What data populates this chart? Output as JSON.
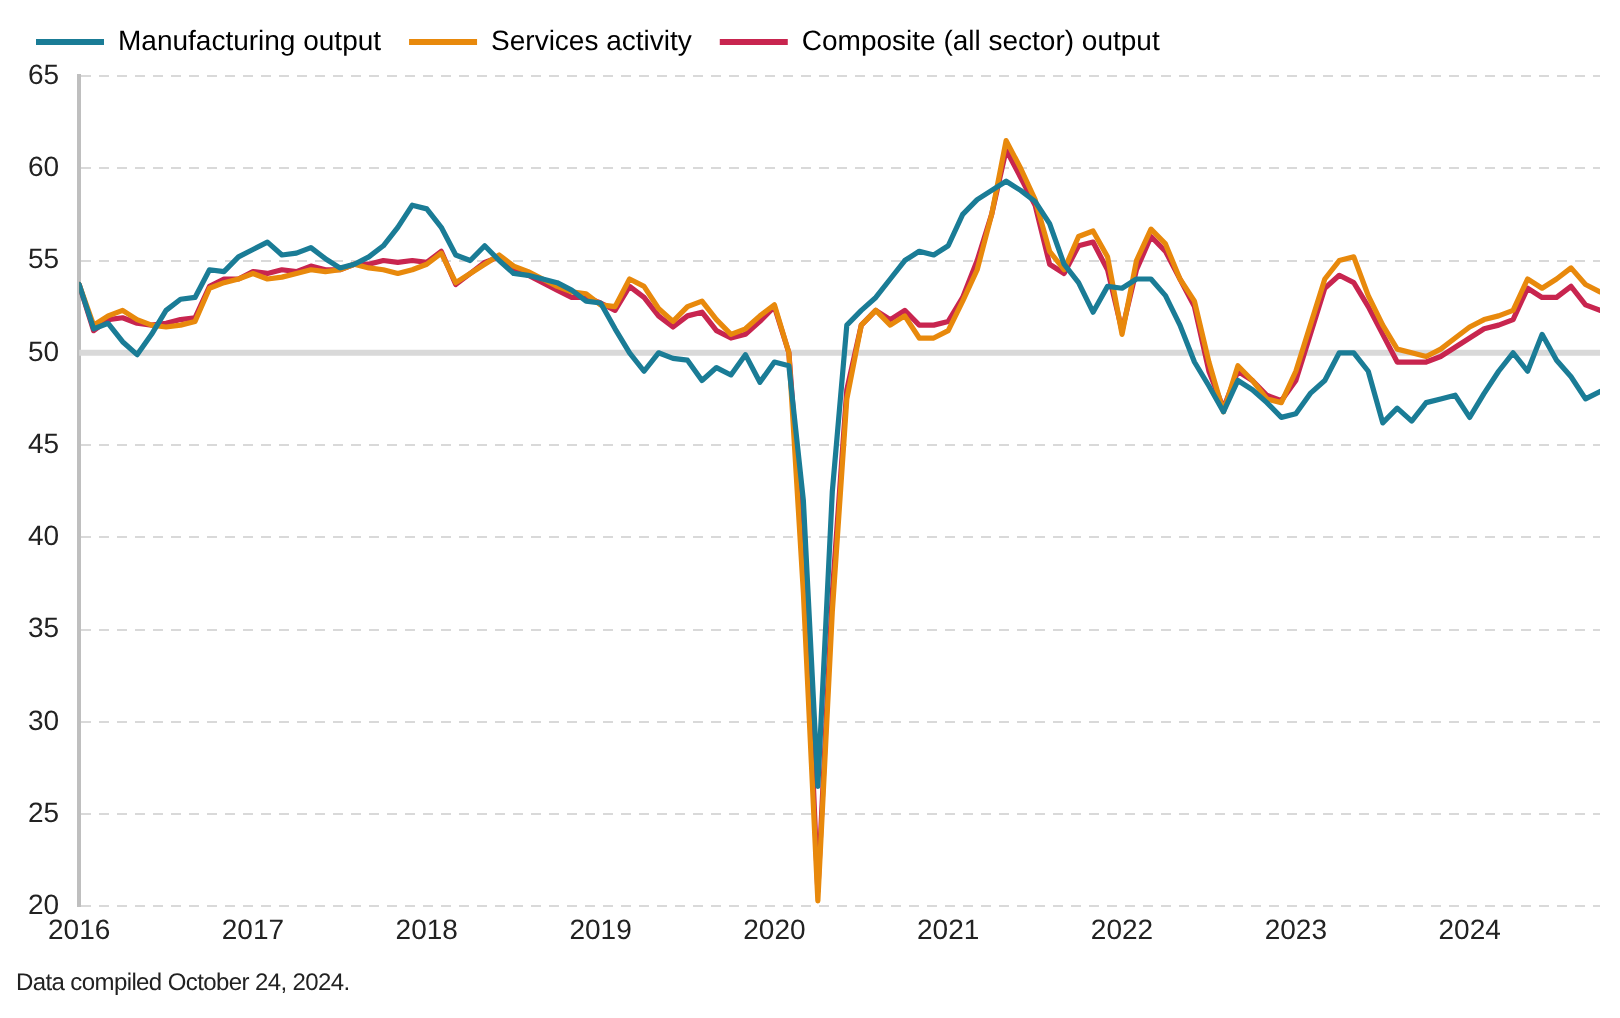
{
  "chart_data": {
    "type": "line",
    "x": [
      "2016-01",
      "2016-02",
      "2016-03",
      "2016-04",
      "2016-05",
      "2016-06",
      "2016-07",
      "2016-08",
      "2016-09",
      "2016-10",
      "2016-11",
      "2016-12",
      "2017-01",
      "2017-02",
      "2017-03",
      "2017-04",
      "2017-05",
      "2017-06",
      "2017-07",
      "2017-08",
      "2017-09",
      "2017-10",
      "2017-11",
      "2017-12",
      "2018-01",
      "2018-02",
      "2018-03",
      "2018-04",
      "2018-05",
      "2018-06",
      "2018-07",
      "2018-08",
      "2018-09",
      "2018-10",
      "2018-11",
      "2018-12",
      "2019-01",
      "2019-02",
      "2019-03",
      "2019-04",
      "2019-05",
      "2019-06",
      "2019-07",
      "2019-08",
      "2019-09",
      "2019-10",
      "2019-11",
      "2019-12",
      "2020-01",
      "2020-02",
      "2020-03",
      "2020-04",
      "2020-05",
      "2020-06",
      "2020-07",
      "2020-08",
      "2020-09",
      "2020-10",
      "2020-11",
      "2020-12",
      "2021-01",
      "2021-02",
      "2021-03",
      "2021-04",
      "2021-05",
      "2021-06",
      "2021-07",
      "2021-08",
      "2021-09",
      "2021-10",
      "2021-11",
      "2021-12",
      "2022-01",
      "2022-02",
      "2022-03",
      "2022-04",
      "2022-05",
      "2022-06",
      "2022-07",
      "2022-08",
      "2022-09",
      "2022-10",
      "2022-11",
      "2022-12",
      "2023-01",
      "2023-02",
      "2023-03",
      "2023-04",
      "2023-05",
      "2023-06",
      "2023-07",
      "2023-08",
      "2023-09",
      "2023-10",
      "2023-11",
      "2023-12",
      "2024-01",
      "2024-02",
      "2024-03",
      "2024-04",
      "2024-05",
      "2024-06",
      "2024-07",
      "2024-08",
      "2024-09",
      "2024-10"
    ],
    "series": [
      {
        "name": "Manufacturing output",
        "color": "#1a7c96",
        "values": [
          53.7,
          51.3,
          51.6,
          50.6,
          49.9,
          51.0,
          52.3,
          52.9,
          53.0,
          54.5,
          54.4,
          55.2,
          55.6,
          56.0,
          55.3,
          55.4,
          55.7,
          55.1,
          54.6,
          54.8,
          55.2,
          55.8,
          56.8,
          58.0,
          57.8,
          56.8,
          55.3,
          55.0,
          55.8,
          55.0,
          54.3,
          54.2,
          54.0,
          53.8,
          53.4,
          52.8,
          52.7,
          51.3,
          50.0,
          49.0,
          50.0,
          49.7,
          49.6,
          48.5,
          49.2,
          48.8,
          49.9,
          48.4,
          49.5,
          49.3,
          42.0,
          26.5,
          42.5,
          51.5,
          52.3,
          53.0,
          54.0,
          55.0,
          55.5,
          55.3,
          55.8,
          57.5,
          58.3,
          58.8,
          59.3,
          58.8,
          58.2,
          57.0,
          54.8,
          53.8,
          52.2,
          53.6,
          53.5,
          54.0,
          54.0,
          53.1,
          51.5,
          49.5,
          48.2,
          46.8,
          48.5,
          48.0,
          47.3,
          46.5,
          46.7,
          47.8,
          48.5,
          50.0,
          50.0,
          49.0,
          46.2,
          47.0,
          46.3,
          47.3,
          47.5,
          47.7,
          46.5,
          47.8,
          49.0,
          50.0,
          49.0,
          51.0,
          49.6,
          48.7,
          47.5,
          47.9
        ]
      },
      {
        "name": "Services activity",
        "color": "#e8890c",
        "values": [
          53.7,
          51.5,
          52.0,
          52.3,
          51.8,
          51.5,
          51.4,
          51.5,
          51.7,
          53.5,
          53.8,
          54.0,
          54.3,
          54.0,
          54.1,
          54.3,
          54.5,
          54.4,
          54.5,
          54.8,
          54.6,
          54.5,
          54.3,
          54.5,
          54.8,
          55.4,
          53.8,
          54.3,
          54.8,
          55.3,
          54.7,
          54.4,
          54.0,
          53.6,
          53.3,
          53.2,
          52.6,
          52.5,
          54.0,
          53.6,
          52.4,
          51.7,
          52.5,
          52.8,
          51.8,
          51.0,
          51.3,
          52.0,
          52.6,
          50.0,
          37.0,
          20.3,
          36.0,
          47.5,
          51.5,
          52.3,
          51.5,
          52.0,
          50.8,
          50.8,
          51.2,
          52.8,
          54.5,
          57.5,
          61.5,
          60.0,
          58.3,
          55.5,
          54.5,
          56.3,
          56.6,
          55.2,
          51.0,
          55.0,
          56.7,
          55.9,
          54.0,
          52.8,
          49.5,
          46.8,
          49.3,
          48.5,
          47.5,
          47.3,
          49.0,
          51.5,
          54.0,
          55.0,
          55.2,
          53.1,
          51.5,
          50.2,
          50.0,
          49.8,
          50.2,
          50.8,
          51.4,
          51.8,
          52.0,
          52.3,
          54.0,
          53.5,
          54.0,
          54.6,
          53.7,
          53.3
        ]
      },
      {
        "name": "Composite (all sector) output",
        "color": "#c8254f",
        "values": [
          53.7,
          51.2,
          51.8,
          51.9,
          51.6,
          51.5,
          51.6,
          51.8,
          51.9,
          53.6,
          54.0,
          54.0,
          54.4,
          54.3,
          54.5,
          54.4,
          54.7,
          54.5,
          54.5,
          54.8,
          54.8,
          55.0,
          54.9,
          55.0,
          54.9,
          55.5,
          53.7,
          54.3,
          54.9,
          55.2,
          54.5,
          54.2,
          53.8,
          53.4,
          53.0,
          53.0,
          52.7,
          52.3,
          53.6,
          53.0,
          52.0,
          51.4,
          52.0,
          52.2,
          51.2,
          50.8,
          51.0,
          51.7,
          52.5,
          50.0,
          39.5,
          20.8,
          37.0,
          48.0,
          51.5,
          52.3,
          51.8,
          52.3,
          51.5,
          51.5,
          51.7,
          53.0,
          55.0,
          57.5,
          61.0,
          59.5,
          58.0,
          54.8,
          54.3,
          55.8,
          56.0,
          54.5,
          51.2,
          54.5,
          56.3,
          55.5,
          54.0,
          52.5,
          49.0,
          47.0,
          49.0,
          48.5,
          47.7,
          47.4,
          48.5,
          51.0,
          53.5,
          54.2,
          53.8,
          52.5,
          51.0,
          49.5,
          49.5,
          49.5,
          49.8,
          50.3,
          50.8,
          51.3,
          51.5,
          51.8,
          53.5,
          53.0,
          53.0,
          53.6,
          52.6,
          52.3
        ]
      }
    ],
    "xlim": [
      "2016-01",
      "2024-10"
    ],
    "xticks": [
      {
        "value": "2016-01",
        "label": "2016"
      },
      {
        "value": "2017-01",
        "label": "2017"
      },
      {
        "value": "2018-01",
        "label": "2018"
      },
      {
        "value": "2019-01",
        "label": "2019"
      },
      {
        "value": "2020-01",
        "label": "2020"
      },
      {
        "value": "2021-01",
        "label": "2021"
      },
      {
        "value": "2022-01",
        "label": "2022"
      },
      {
        "value": "2023-01",
        "label": "2023"
      },
      {
        "value": "2024-01",
        "label": "2024"
      }
    ],
    "ylim": [
      20,
      65
    ],
    "yticks": [
      20,
      25,
      30,
      35,
      40,
      45,
      50,
      55,
      60,
      65
    ],
    "ref_lines": [
      {
        "axis": "y",
        "value": 50,
        "color": "#d9d9d9"
      }
    ],
    "grid": "y",
    "legend": "top left",
    "marker": "none",
    "line_style": "solid",
    "annotations": [
      "Data compiled October 24, 2024."
    ]
  }
}
